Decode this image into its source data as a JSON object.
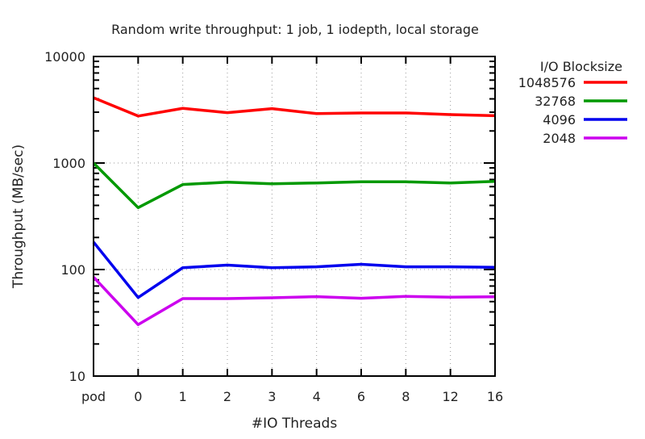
{
  "chart_data": {
    "type": "line",
    "title": "Random write throughput: 1 job, 1 iodepth, local storage",
    "xlabel": "#IO Threads",
    "ylabel": "Throughput (MB/sec)",
    "yscale": "log",
    "ylim": [
      10,
      10000
    ],
    "yticks": [
      "10",
      "100",
      "1000",
      "10000"
    ],
    "categories": [
      "pod",
      "0",
      "1",
      "2",
      "3",
      "4",
      "6",
      "8",
      "12",
      "16"
    ],
    "grid": true,
    "legend": {
      "title": "I/O Blocksize",
      "placement": "outside-right"
    },
    "series": [
      {
        "name": "1048576",
        "color": "#ff0000",
        "values": [
          4100,
          2760,
          3260,
          2970,
          3240,
          2910,
          2950,
          2950,
          2850,
          2780
        ]
      },
      {
        "name": "32768",
        "color": "#009900",
        "values": [
          1000,
          381,
          628,
          661,
          638,
          650,
          666,
          666,
          650,
          673
        ]
      },
      {
        "name": "4096",
        "color": "#0000ee",
        "values": [
          181,
          54.6,
          104,
          110,
          104,
          106,
          112,
          106,
          106,
          105
        ]
      },
      {
        "name": "2048",
        "color": "#cc00ee",
        "values": [
          85,
          30.4,
          53.4,
          53.4,
          54.3,
          55.6,
          53.7,
          56,
          55,
          55.5
        ]
      }
    ]
  }
}
